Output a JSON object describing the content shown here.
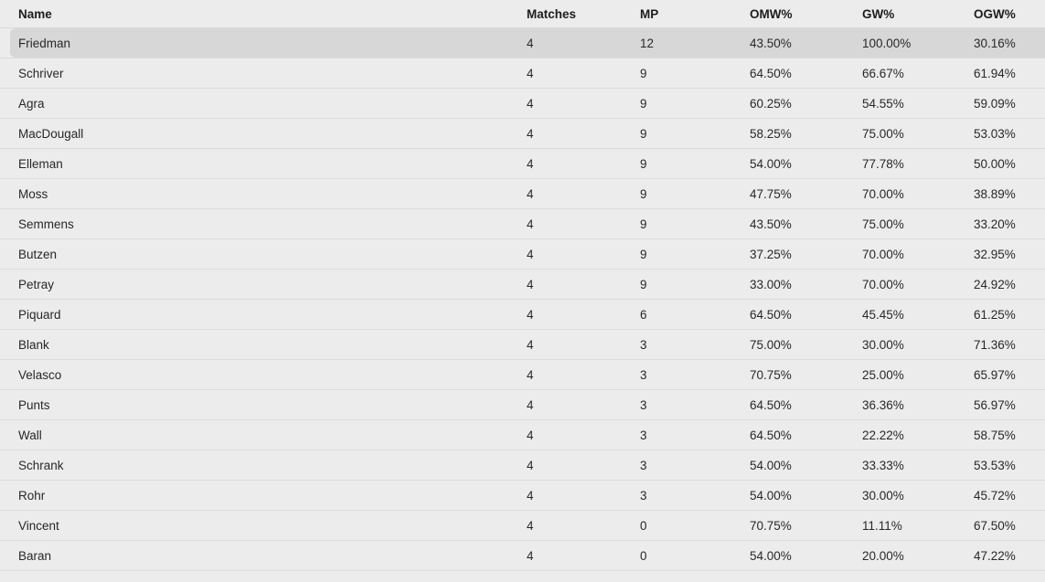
{
  "table": {
    "columns": [
      {
        "key": "name",
        "label": "Name"
      },
      {
        "key": "matches",
        "label": "Matches"
      },
      {
        "key": "mp",
        "label": "MP"
      },
      {
        "key": "omw",
        "label": "OMW%"
      },
      {
        "key": "gw",
        "label": "GW%"
      },
      {
        "key": "ogw",
        "label": "OGW%"
      }
    ],
    "selected_index": 0,
    "colors": {
      "background": "#ececec",
      "divider": "#dcdce2",
      "selected_row": "#d7d7d8",
      "header_text": "#1d1d1f",
      "cell_text": "#28282c"
    },
    "rows": [
      {
        "name": "Friedman",
        "matches": "4",
        "mp": "12",
        "omw": "43.50%",
        "gw": "100.00%",
        "ogw": "30.16%"
      },
      {
        "name": "Schriver",
        "matches": "4",
        "mp": "9",
        "omw": "64.50%",
        "gw": "66.67%",
        "ogw": "61.94%"
      },
      {
        "name": "Agra",
        "matches": "4",
        "mp": "9",
        "omw": "60.25%",
        "gw": "54.55%",
        "ogw": "59.09%"
      },
      {
        "name": "MacDougall",
        "matches": "4",
        "mp": "9",
        "omw": "58.25%",
        "gw": "75.00%",
        "ogw": "53.03%"
      },
      {
        "name": "Elleman",
        "matches": "4",
        "mp": "9",
        "omw": "54.00%",
        "gw": "77.78%",
        "ogw": "50.00%"
      },
      {
        "name": "Moss",
        "matches": "4",
        "mp": "9",
        "omw": "47.75%",
        "gw": "70.00%",
        "ogw": "38.89%"
      },
      {
        "name": "Semmens",
        "matches": "4",
        "mp": "9",
        "omw": "43.50%",
        "gw": "75.00%",
        "ogw": "33.20%"
      },
      {
        "name": "Butzen",
        "matches": "4",
        "mp": "9",
        "omw": "37.25%",
        "gw": "70.00%",
        "ogw": "32.95%"
      },
      {
        "name": "Petray",
        "matches": "4",
        "mp": "9",
        "omw": "33.00%",
        "gw": "70.00%",
        "ogw": "24.92%"
      },
      {
        "name": "Piquard",
        "matches": "4",
        "mp": "6",
        "omw": "64.50%",
        "gw": "45.45%",
        "ogw": "61.25%"
      },
      {
        "name": "Blank",
        "matches": "4",
        "mp": "3",
        "omw": "75.00%",
        "gw": "30.00%",
        "ogw": "71.36%"
      },
      {
        "name": "Velasco",
        "matches": "4",
        "mp": "3",
        "omw": "70.75%",
        "gw": "25.00%",
        "ogw": "65.97%"
      },
      {
        "name": "Punts",
        "matches": "4",
        "mp": "3",
        "omw": "64.50%",
        "gw": "36.36%",
        "ogw": "56.97%"
      },
      {
        "name": "Wall",
        "matches": "4",
        "mp": "3",
        "omw": "64.50%",
        "gw": "22.22%",
        "ogw": "58.75%"
      },
      {
        "name": "Schrank",
        "matches": "4",
        "mp": "3",
        "omw": "54.00%",
        "gw": "33.33%",
        "ogw": "53.53%"
      },
      {
        "name": "Rohr",
        "matches": "4",
        "mp": "3",
        "omw": "54.00%",
        "gw": "30.00%",
        "ogw": "45.72%"
      },
      {
        "name": "Vincent",
        "matches": "4",
        "mp": "0",
        "omw": "70.75%",
        "gw": "11.11%",
        "ogw": "67.50%"
      },
      {
        "name": "Baran",
        "matches": "4",
        "mp": "0",
        "omw": "54.00%",
        "gw": "20.00%",
        "ogw": "47.22%"
      }
    ]
  }
}
